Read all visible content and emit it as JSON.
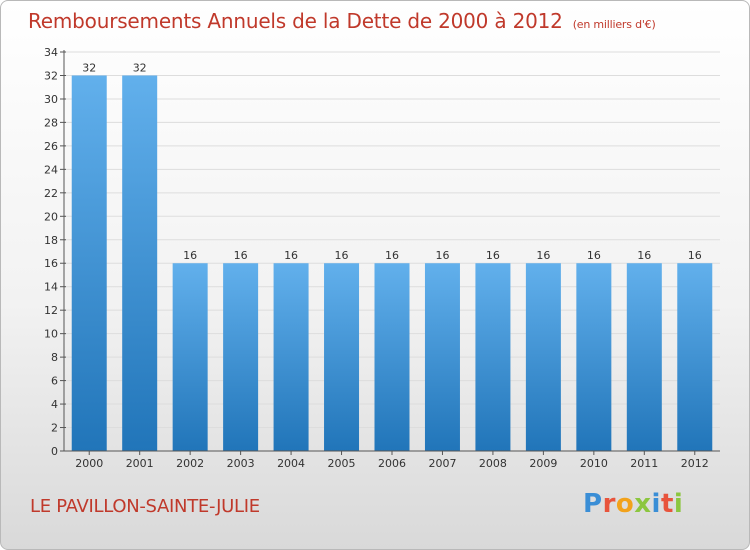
{
  "title": "Remboursements Annuels de la Dette de 2000 à 2012",
  "unit_note": "(en milliers d'€)",
  "place_name": "LE PAVILLON-SAINTE-JULIE",
  "logo": {
    "text": "Proxiti",
    "letter_colors": [
      "#3a8ed6",
      "#e8543c",
      "#f2a21b",
      "#8cc63f",
      "#3a8ed6",
      "#e8543c",
      "#8cc63f"
    ]
  },
  "colors": {
    "title": "#c0392b",
    "bar_top": "#62b0ec",
    "bar_bottom": "#2175b9",
    "axis": "#555555",
    "grid": "#dddddd"
  },
  "chart_data": {
    "type": "bar",
    "categories": [
      "2000",
      "2001",
      "2002",
      "2003",
      "2004",
      "2005",
      "2006",
      "2007",
      "2008",
      "2009",
      "2010",
      "2011",
      "2012"
    ],
    "values": [
      32,
      32,
      16,
      16,
      16,
      16,
      16,
      16,
      16,
      16,
      16,
      16,
      16
    ],
    "data_labels": [
      "32",
      "32",
      "16",
      "16",
      "16",
      "16",
      "16",
      "16",
      "16",
      "16",
      "16",
      "16",
      "16"
    ],
    "title": "Remboursements Annuels de la Dette de 2000 à 2012",
    "xlabel": "",
    "ylabel": "",
    "ylim": [
      0,
      34
    ],
    "yticks": [
      0,
      2,
      4,
      6,
      8,
      10,
      12,
      14,
      16,
      18,
      20,
      22,
      24,
      26,
      28,
      30,
      32,
      34
    ],
    "grid": true,
    "legend": "none"
  }
}
